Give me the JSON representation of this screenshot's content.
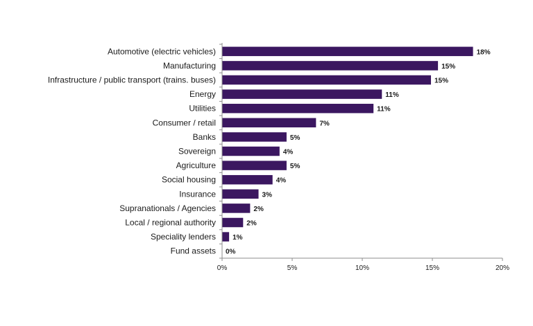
{
  "chart_data": {
    "type": "bar",
    "orientation": "horizontal",
    "categories": [
      "Automotive (electric vehicles)",
      "Manufacturing ",
      "Infrastructure / public transport (trains. buses)",
      "Energy",
      "Utilities",
      "Consumer / retail",
      "Banks",
      "Sovereign ",
      "Agriculture",
      "Social housing",
      "Insurance",
      "Supranationals / Agencies",
      "Local / regional authority",
      "Speciality lenders",
      "Fund assets"
    ],
    "values": [
      17.9,
      15.4,
      14.9,
      11.4,
      10.8,
      6.7,
      4.6,
      4.1,
      4.6,
      3.6,
      2.6,
      2.0,
      1.5,
      0.5,
      0.0
    ],
    "value_labels": [
      "18%",
      "15%",
      "15%",
      "11%",
      "11%",
      "7%",
      "5%",
      "4%",
      "5%",
      "4%",
      "3%",
      "2%",
      "2%",
      "1%",
      "0%"
    ],
    "title": "",
    "xlabel": "",
    "ylabel": "",
    "xlim": [
      0,
      20
    ],
    "xticks": [
      0,
      5,
      10,
      15,
      20
    ],
    "xtick_labels": [
      "0%",
      "5%",
      "10%",
      "15%",
      "20%"
    ],
    "grid": false,
    "legend": "none",
    "colors": {
      "bar": "#3b1760",
      "axis": "#8c8c8c"
    }
  }
}
